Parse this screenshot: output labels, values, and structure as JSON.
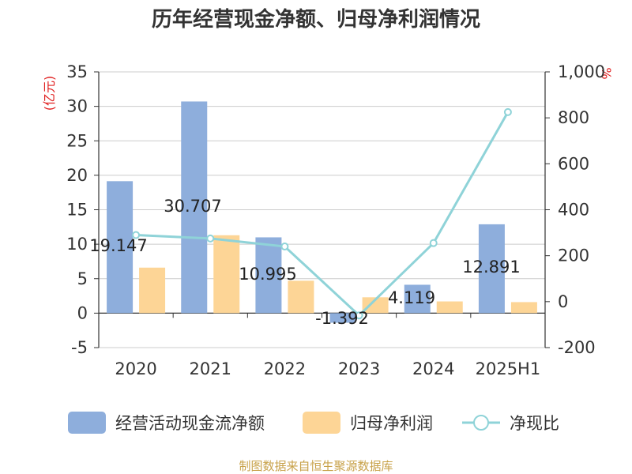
{
  "chart_data": {
    "type": "bar",
    "title": "历年经营现金净额、归母净利润情况",
    "categories": [
      "2020",
      "2021",
      "2022",
      "2023",
      "2024",
      "2025H1"
    ],
    "series": [
      {
        "name": "经营活动现金流净额",
        "type": "bar",
        "axis": "left",
        "color": "#8eaedc",
        "values": [
          19.147,
          30.707,
          10.995,
          -1.392,
          4.119,
          12.891
        ],
        "labels": [
          "19.147",
          "30.707",
          "10.995",
          "-1.392",
          "4.119",
          "12.891"
        ]
      },
      {
        "name": "归母净利润",
        "type": "bar",
        "axis": "left",
        "color": "#fdd596",
        "values": [
          6.6,
          11.3,
          4.7,
          2.3,
          1.7,
          1.6
        ]
      },
      {
        "name": "净现比",
        "type": "line",
        "axis": "right",
        "color": "#8fd3d8",
        "values": [
          290,
          275,
          240,
          -60,
          255,
          825
        ]
      }
    ],
    "left_axis": {
      "unit": "(亿元)",
      "ylim": [
        -5,
        35
      ],
      "ticks": [
        "35",
        "30",
        "25",
        "20",
        "15",
        "10",
        "5",
        "0",
        "-5"
      ]
    },
    "right_axis": {
      "unit": "%",
      "ylim": [
        -200,
        1000
      ],
      "ticks": [
        "1,000",
        "800",
        "600",
        "400",
        "200",
        "0",
        "-200"
      ]
    },
    "grid": true,
    "legend_position": "bottom"
  },
  "footer": {
    "text": "制图数据来自恒生聚源数据库",
    "color": "#c8a24a"
  },
  "colors": {
    "unit_label": "#e02020",
    "axis": "#333333",
    "grid": "#cccccc"
  }
}
